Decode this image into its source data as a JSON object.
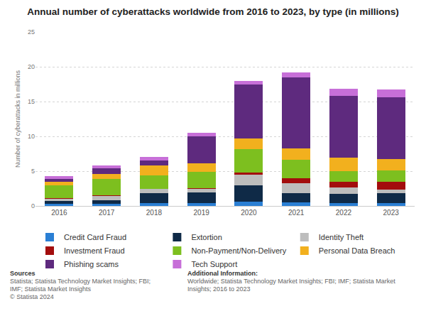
{
  "chart_data": {
    "type": "bar",
    "stacked": true,
    "title": "Annual number of cyberattacks worldwide from 2016 to 2023, by type (in millions)",
    "y_label": "Number of cyberattacks in millions",
    "categories": [
      "2016",
      "2017",
      "2018",
      "2019",
      "2020",
      "2021",
      "2022",
      "2023"
    ],
    "series": [
      {
        "name": "Credit Card Fraud",
        "color": "#2a7fd4",
        "values": [
          0.3,
          0.3,
          0.4,
          0.4,
          0.6,
          0.5,
          0.4,
          0.4
        ]
      },
      {
        "name": "Extortion",
        "color": "#0f2a47",
        "values": [
          0.4,
          0.5,
          1.4,
          1.5,
          2.4,
          1.3,
          1.3,
          1.4
        ]
      },
      {
        "name": "Identity Theft",
        "color": "#bdbdbd",
        "values": [
          0.3,
          0.6,
          0.6,
          0.6,
          1.5,
          1.5,
          1.0,
          0.5
        ]
      },
      {
        "name": "Investment Fraud",
        "color": "#a30d0d",
        "values": [
          0.1,
          0.1,
          0.1,
          0.1,
          0.3,
          0.7,
          0.8,
          1.2
        ]
      },
      {
        "name": "Non-Payment/Non-Delivery",
        "color": "#7dbf1f",
        "values": [
          1.9,
          2.4,
          1.9,
          2.3,
          3.4,
          2.6,
          1.5,
          1.6
        ]
      },
      {
        "name": "Personal Data Breach",
        "color": "#f2b01e",
        "values": [
          0.5,
          0.7,
          1.4,
          1.2,
          1.5,
          1.7,
          1.9,
          1.6
        ]
      },
      {
        "name": "Phishing scams",
        "color": "#5e2a7e",
        "values": [
          0.4,
          0.8,
          0.7,
          3.9,
          7.8,
          10.2,
          8.9,
          8.9
        ]
      },
      {
        "name": "Tech Support",
        "color": "#c76fd8",
        "values": [
          0.4,
          0.4,
          0.5,
          0.5,
          0.5,
          0.7,
          1.0,
          1.1
        ]
      }
    ],
    "ylim": [
      0,
      25
    ],
    "yticks": [
      0,
      5,
      10,
      15,
      20,
      25
    ],
    "grid": true,
    "legend": "bottom"
  },
  "footer": {
    "sources_title": "Sources",
    "sources": [
      "Statista; Statista Technology Market Insights; FBI;",
      "IMF; Statista Market Insights",
      "© Statista 2024"
    ],
    "info_title": "Additional Information:",
    "info": [
      "Worldwide; Statista Technology Market Insights; FBI; IMF; Statista Market Insights; 2016 to 2023"
    ]
  }
}
